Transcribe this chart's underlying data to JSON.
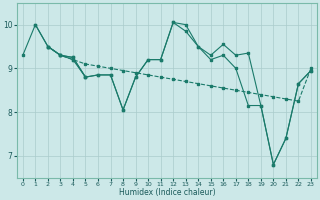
{
  "xlabel": "Humidex (Indice chaleur)",
  "bg_color": "#cce8e8",
  "grid_color": "#aacccc",
  "line_color": "#1a7a6a",
  "xlim": [
    -0.5,
    23.5
  ],
  "ylim": [
    6.5,
    10.5
  ],
  "yticks": [
    7,
    8,
    9,
    10
  ],
  "xticks": [
    0,
    1,
    2,
    3,
    4,
    5,
    6,
    7,
    8,
    9,
    10,
    11,
    12,
    13,
    14,
    15,
    16,
    17,
    18,
    19,
    20,
    21,
    22,
    23
  ],
  "lines": [
    {
      "x": [
        0,
        1,
        2,
        3,
        4,
        5,
        6,
        7,
        8,
        9,
        10,
        11,
        12,
        13,
        14,
        15,
        16,
        17,
        18,
        19,
        20,
        21,
        22,
        23
      ],
      "y": [
        9.3,
        10.0,
        9.5,
        9.3,
        9.25,
        8.8,
        8.85,
        8.85,
        8.05,
        8.8,
        9.2,
        9.2,
        10.05,
        10.0,
        9.5,
        9.3,
        9.55,
        9.3,
        9.35,
        8.15,
        6.8,
        7.4,
        8.65,
        8.95
      ]
    },
    {
      "x": [
        2,
        3,
        4,
        5,
        6,
        7,
        8,
        9,
        10,
        11,
        12,
        13,
        14,
        15,
        16,
        17,
        18,
        19,
        20,
        21,
        22,
        23
      ],
      "y": [
        9.5,
        9.3,
        9.2,
        9.1,
        9.05,
        9.0,
        8.95,
        8.9,
        8.85,
        8.8,
        8.75,
        8.7,
        8.65,
        8.6,
        8.55,
        8.5,
        8.45,
        8.4,
        8.35,
        8.3,
        8.25,
        9.0
      ]
    },
    {
      "x": [
        2,
        3,
        4,
        5,
        6,
        7,
        8,
        9,
        10,
        11,
        12,
        13,
        14,
        15,
        16,
        17,
        18,
        19,
        20,
        21,
        22,
        23
      ],
      "y": [
        9.5,
        9.3,
        9.2,
        8.8,
        8.85,
        8.85,
        8.05,
        8.8,
        9.2,
        9.2,
        10.05,
        9.85,
        9.5,
        9.2,
        9.3,
        9.0,
        8.15,
        8.15,
        6.8,
        7.4,
        8.65,
        8.95
      ]
    },
    {
      "x": [
        1,
        2,
        3,
        4,
        5
      ],
      "y": [
        10.0,
        9.5,
        9.3,
        9.25,
        8.8
      ]
    }
  ]
}
